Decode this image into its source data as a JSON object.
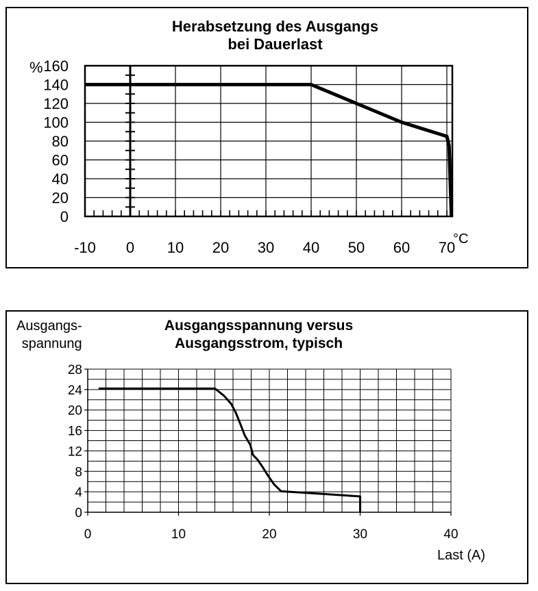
{
  "chart_data": [
    {
      "type": "line",
      "title_line1": "Herabsetzung des Ausgangs",
      "title_line2": "bei Dauerlast",
      "ylabel": "%",
      "xlabel": "°C",
      "xlim": [
        -10,
        71
      ],
      "ylim": [
        0,
        160
      ],
      "x_ticks": [
        "-10",
        "0",
        "10",
        "20",
        "30",
        "40",
        "50",
        "60",
        "70"
      ],
      "y_ticks": [
        "0",
        "20",
        "40",
        "60",
        "80",
        "100",
        "120",
        "140",
        "160"
      ],
      "grid": true,
      "series": [
        {
          "x": [
            -10,
            40,
            50,
            60,
            70,
            70.5,
            71
          ],
          "y": [
            140,
            140,
            120,
            100,
            85,
            75,
            0
          ]
        }
      ]
    },
    {
      "type": "line",
      "title_line1": "Ausgangsspannung versus",
      "title_line2": "Ausgangsstrom, typisch",
      "ylabel_line1": "Ausgangs-",
      "ylabel_line2": "spannung",
      "xlabel": "Last (A)",
      "xlim": [
        0,
        40
      ],
      "ylim": [
        0,
        28
      ],
      "x_ticks": [
        "0",
        "10",
        "20",
        "30",
        "40"
      ],
      "y_ticks": [
        "0",
        "4",
        "8",
        "12",
        "16",
        "20",
        "24",
        "28"
      ],
      "grid": true,
      "series": [
        {
          "x": [
            1.2,
            14,
            15,
            15.8,
            16.3,
            16.8,
            17.3,
            17.9,
            18.2,
            18.7,
            19.2,
            19.8,
            20.5,
            21.3,
            24,
            30,
            30
          ],
          "y": [
            24.2,
            24.2,
            22.8,
            21.2,
            19.5,
            17.3,
            15,
            13.2,
            11.2,
            10.3,
            9,
            7.3,
            5.5,
            4.1,
            3.8,
            3.1,
            0
          ]
        }
      ]
    }
  ]
}
